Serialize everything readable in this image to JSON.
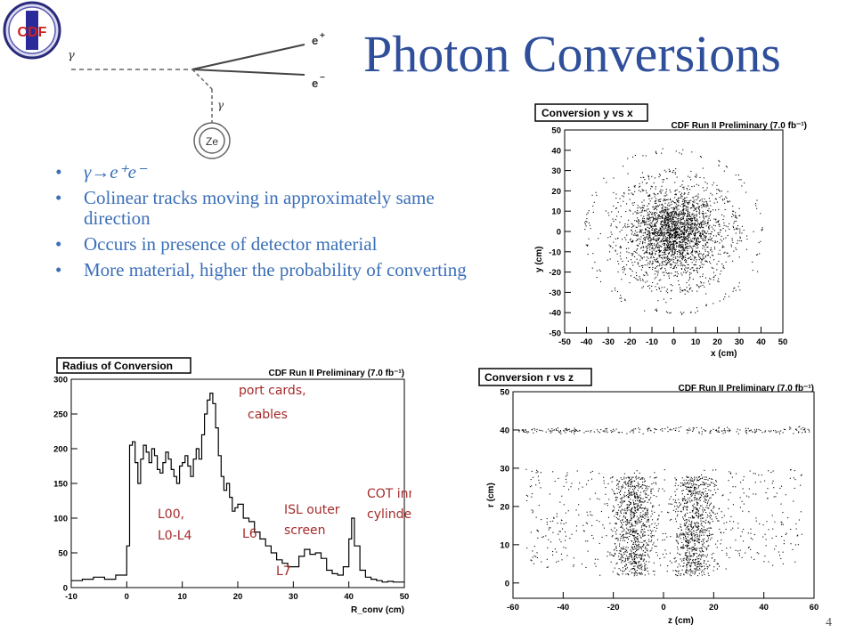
{
  "slide": {
    "title": "Photon Conversions",
    "logo_text": "CDF",
    "page_number": "4"
  },
  "feynman": {
    "gamma_label": "γ",
    "gamma2_label": "γ",
    "e_plus_label": "e",
    "e_plus_sup": "+",
    "e_minus_label": "e",
    "e_minus_sup": "−",
    "nucleus_label": "Ze"
  },
  "bullets": [
    {
      "id": "b1",
      "text": "γ→e⁺e⁻"
    },
    {
      "id": "b2",
      "text": "Colinear tracks moving in approximately same direction"
    },
    {
      "id": "b3",
      "text": "Occurs in presence of detector material"
    },
    {
      "id": "b4",
      "text": "More material, higher the probability of converting"
    }
  ],
  "chart_data": [
    {
      "type": "scatter",
      "title": "Conversion y vs x",
      "subtitle": "CDF Run II Preliminary (7.0 fb⁻¹)",
      "xlabel": "x (cm)",
      "ylabel": "y (cm)",
      "xlim": [
        -50,
        50
      ],
      "ylim": [
        -50,
        50
      ],
      "xticks": [
        -50,
        -40,
        -30,
        -20,
        -10,
        0,
        10,
        20,
        30,
        40,
        50
      ],
      "yticks": [
        -50,
        -40,
        -30,
        -20,
        -10,
        0,
        10,
        20,
        30,
        40,
        50
      ],
      "description_points": "dense cloud centered at (0,0) with rings near r≈28 and r≈40"
    },
    {
      "type": "line",
      "title": "Radius of Conversion",
      "subtitle": "CDF Run II Preliminary (7.0 fb⁻¹)",
      "xlabel": "R_conv (cm)",
      "ylabel": "",
      "xlim": [
        -10,
        50
      ],
      "ylim": [
        0,
        300
      ],
      "xticks": [
        -10,
        0,
        10,
        20,
        30,
        40,
        50
      ],
      "yticks": [
        0,
        50,
        100,
        150,
        200,
        250,
        300
      ],
      "x": [
        -10,
        -8,
        -6,
        -4,
        -2,
        0,
        0.5,
        1,
        1.5,
        2,
        2.5,
        3,
        3.5,
        4,
        4.5,
        5,
        5.5,
        6,
        6.5,
        7,
        7.5,
        8,
        8.5,
        9,
        9.5,
        10,
        10.5,
        11,
        11.5,
        12,
        12.5,
        13,
        13.5,
        14,
        14.5,
        15,
        15.5,
        16,
        16.5,
        17,
        17.5,
        18,
        18.5,
        19,
        19.5,
        20,
        21,
        22,
        23,
        24,
        25,
        26,
        27,
        28,
        29,
        30,
        31,
        32,
        33,
        34,
        35,
        36,
        37,
        38,
        39,
        40,
        40.5,
        41,
        42,
        43,
        44,
        45,
        46,
        47,
        48,
        49,
        50
      ],
      "values": [
        10,
        12,
        15,
        12,
        18,
        60,
        205,
        210,
        180,
        150,
        185,
        205,
        195,
        180,
        200,
        190,
        170,
        165,
        180,
        195,
        185,
        170,
        160,
        150,
        175,
        180,
        190,
        175,
        160,
        185,
        200,
        185,
        220,
        250,
        270,
        280,
        265,
        230,
        190,
        160,
        140,
        150,
        130,
        110,
        115,
        120,
        100,
        95,
        80,
        70,
        60,
        50,
        40,
        35,
        30,
        30,
        45,
        55,
        48,
        50,
        42,
        25,
        20,
        18,
        30,
        70,
        100,
        60,
        25,
        15,
        12,
        10,
        8,
        9,
        8,
        8,
        8
      ],
      "annotations": [
        "L00,",
        "L0-L4",
        "port cards,",
        "cables",
        "L6",
        "L7",
        "ISL outer",
        "screen",
        "COT inner",
        "cylinder"
      ]
    },
    {
      "type": "scatter",
      "title": "Conversion r vs z",
      "subtitle": "CDF Run II Preliminary (7.0 fb⁻¹)",
      "xlabel": "z (cm)",
      "ylabel": "r (cm)",
      "xlim": [
        -60,
        60
      ],
      "ylim": [
        -4,
        50
      ],
      "xticks": [
        -60,
        -40,
        -20,
        0,
        20,
        40,
        60
      ],
      "yticks": [
        0,
        10,
        20,
        30,
        40,
        50
      ],
      "description_points": "band 0-30 cm in r with dense clusters at z≈-12 and z≈12; thin line at r≈40"
    }
  ]
}
